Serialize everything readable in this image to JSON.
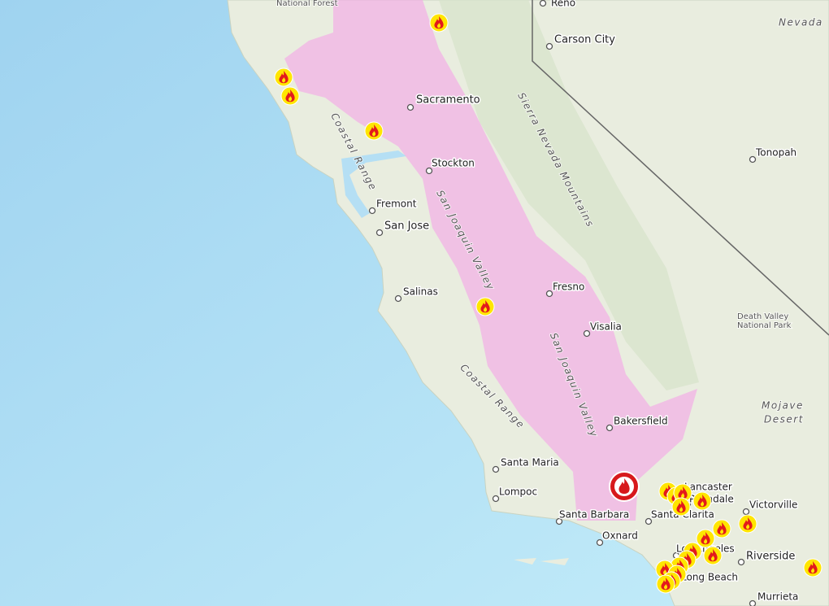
{
  "map": {
    "places": [
      {
        "label": "Reno"
      },
      {
        "label": "Carson City"
      },
      {
        "label": "Sacramento"
      },
      {
        "label": "Stockton"
      },
      {
        "label": "Tonopah"
      },
      {
        "label": "Fremont"
      },
      {
        "label": "San Jose"
      },
      {
        "label": "Salinas"
      },
      {
        "label": "Fresno"
      },
      {
        "label": "Visalia"
      },
      {
        "label": "Bakersfield"
      },
      {
        "label": "Santa Maria"
      },
      {
        "label": "Lompoc"
      },
      {
        "label": "Lancaster"
      },
      {
        "label": "Palmdale"
      },
      {
        "label": "Victorville"
      },
      {
        "label": "Santa Barbara"
      },
      {
        "label": "Santa Clarita"
      },
      {
        "label": "Oxnard"
      },
      {
        "label": "Los Angeles"
      },
      {
        "label": "Riverside"
      },
      {
        "label": "Long Beach"
      },
      {
        "label": "Murrieta"
      }
    ],
    "regions": [
      {
        "label": "National Forest"
      },
      {
        "label": "Nevada"
      },
      {
        "label": "Sierra Nevada Mountains"
      },
      {
        "label": "Coastal Range"
      },
      {
        "label": "San Joaquin Valley"
      },
      {
        "label": "San Joaquin Valley"
      },
      {
        "label": "Coastal Range"
      },
      {
        "label": "Death Valley"
      },
      {
        "label": "National Park"
      },
      {
        "label": "Mojave"
      },
      {
        "label": "Desert"
      }
    ]
  }
}
